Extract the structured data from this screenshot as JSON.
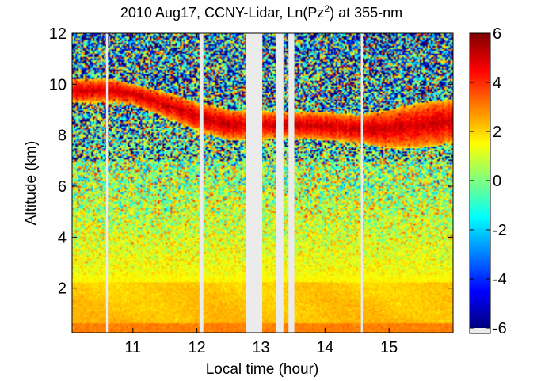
{
  "chart_data": {
    "type": "heatmap",
    "title": "2010 Aug17, CCNY-Lidar, Ln(Pz",
    "title_superscript": "2",
    "title_suffix": ") at 355-nm",
    "xlabel": "Local time (hour)",
    "ylabel": "Altitude (km)",
    "xlim": [
      10.05,
      16.0
    ],
    "ylim": [
      0.25,
      12.0
    ],
    "xticks": [
      {
        "value": 11,
        "label": "11"
      },
      {
        "value": 12,
        "label": "12"
      },
      {
        "value": 13,
        "label": "13"
      },
      {
        "value": 14,
        "label": "14"
      },
      {
        "value": 15,
        "label": "15"
      }
    ],
    "yticks": [
      {
        "value": 2,
        "label": "2"
      },
      {
        "value": 4,
        "label": "4"
      },
      {
        "value": 6,
        "label": "6"
      },
      {
        "value": 8,
        "label": "8"
      },
      {
        "value": 10,
        "label": "10"
      },
      {
        "value": 12,
        "label": "12"
      }
    ],
    "colorbar": {
      "colormap": "jet",
      "range": [
        -6,
        6
      ],
      "ticks": [
        {
          "value": 6,
          "label": "6"
        },
        {
          "value": 4,
          "label": "4"
        },
        {
          "value": 2,
          "label": "2"
        },
        {
          "value": 0,
          "label": "0"
        },
        {
          "value": -2,
          "label": "-2"
        },
        {
          "value": -4,
          "label": "-4"
        },
        {
          "value": -6,
          "label": "-6"
        }
      ],
      "no_data_color": "#ebebeb"
    },
    "data_gaps": [
      {
        "start": 10.58,
        "end": 10.61
      },
      {
        "start": 12.04,
        "end": 12.1
      },
      {
        "start": 12.77,
        "end": 13.02
      },
      {
        "start": 13.23,
        "end": 13.35
      },
      {
        "start": 13.43,
        "end": 13.52
      },
      {
        "start": 14.56,
        "end": 14.59
      }
    ],
    "cloud_layer": {
      "description": "cirrus layer with log signal up to about 5",
      "points": [
        {
          "time": 10.7,
          "base_km": 9.3,
          "top_km": 10.2
        },
        {
          "time": 11.0,
          "base_km": 9.2,
          "top_km": 10.0
        },
        {
          "time": 11.5,
          "base_km": 8.7,
          "top_km": 9.7
        },
        {
          "time": 12.0,
          "base_km": 8.2,
          "top_km": 9.3
        },
        {
          "time": 12.5,
          "base_km": 7.8,
          "top_km": 9.0
        },
        {
          "time": 13.5,
          "base_km": 7.9,
          "top_km": 8.9
        },
        {
          "time": 14.0,
          "base_km": 7.8,
          "top_km": 8.9
        },
        {
          "time": 14.5,
          "base_km": 7.7,
          "top_km": 8.8
        },
        {
          "time": 15.0,
          "base_km": 7.5,
          "top_km": 9.0
        },
        {
          "time": 15.5,
          "base_km": 7.5,
          "top_km": 9.3
        },
        {
          "time": 16.0,
          "base_km": 7.7,
          "top_km": 9.4
        }
      ]
    },
    "boundary_layer": {
      "description": "aerosol layer near surface, log signal about 2 to 3",
      "top_km": 2.2
    }
  }
}
